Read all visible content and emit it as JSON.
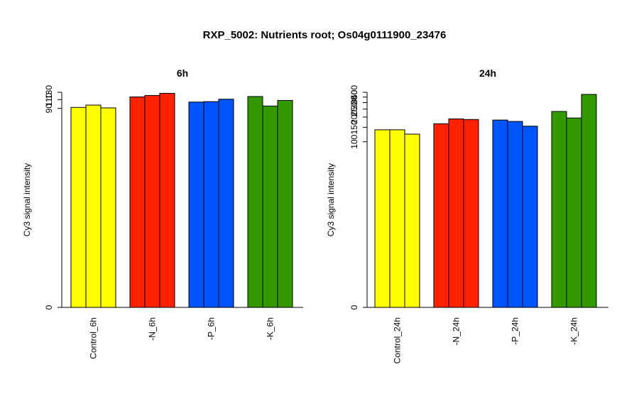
{
  "title": "RXP_5002: Nutrients root; Os04g0111900_23476",
  "colors": {
    "yellow": "#ffff00",
    "red": "#ff2200",
    "blue": "#0055ff",
    "green": "#339900"
  },
  "chart_data": [
    {
      "type": "bar",
      "title": "6h",
      "ylabel": "Cy3 signal intensity",
      "categories": [
        "Control_6h",
        "-N_6h",
        "-P_6h",
        "-K_6h"
      ],
      "group_colors": [
        "#ffff00",
        "#ff2200",
        "#0055ff",
        "#339900"
      ],
      "values": [
        [
          92,
          97,
          91
        ],
        [
          117,
          121,
          127
        ],
        [
          104,
          105,
          111
        ],
        [
          118,
          95,
          108
        ]
      ],
      "yticks": [
        0,
        90,
        110,
        130
      ],
      "scale": "log",
      "ylim": [
        0,
        130
      ]
    },
    {
      "type": "bar",
      "title": "24h",
      "ylabel": "Cy3 signal intensity",
      "categories": [
        "Control_24h",
        "-N_24h",
        "-P_24h",
        "-K_24h"
      ],
      "group_colors": [
        "#ffff00",
        "#ff2200",
        "#0055ff",
        "#339900"
      ],
      "values": [
        [
          140,
          140,
          124
        ],
        [
          166,
          190,
          187
        ],
        [
          184,
          177,
          155
        ],
        [
          234,
          195,
          377
        ]
      ],
      "yticks": [
        0,
        100,
        150,
        200,
        250,
        300,
        350,
        400
      ],
      "scale": "log",
      "ylim": [
        0,
        400
      ]
    }
  ]
}
